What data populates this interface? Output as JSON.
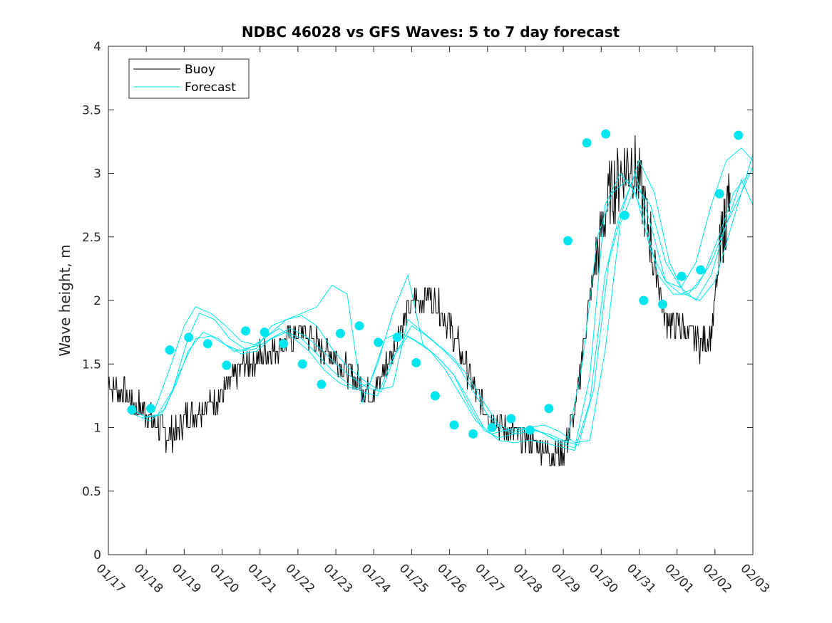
{
  "chart_data": {
    "type": "line",
    "title": "NDBC 46028 vs GFS Waves: 5 to 7 day forecast",
    "xlabel": "",
    "ylabel": "Wave height, m",
    "xlim": [
      0,
      17
    ],
    "ylim": [
      0,
      4
    ],
    "yticks": [
      0,
      0.5,
      1,
      1.5,
      2,
      2.5,
      3,
      3.5,
      4
    ],
    "ytick_labels": [
      "0",
      "0.5",
      "1",
      "1.5",
      "2",
      "2.5",
      "3",
      "3.5",
      "4"
    ],
    "xtick_labels": [
      "01/17",
      "01/18",
      "01/19",
      "01/20",
      "01/21",
      "01/22",
      "01/23",
      "01/24",
      "01/25",
      "01/26",
      "01/27",
      "01/28",
      "01/29",
      "01/30",
      "01/31",
      "02/01",
      "02/02",
      "02/03"
    ],
    "legend": {
      "position": "top-left",
      "entries": [
        {
          "name": "Buoy",
          "color": "#000000"
        },
        {
          "name": "Forecast",
          "color": "#00e5ee"
        }
      ]
    },
    "series": [
      {
        "name": "Buoy",
        "color": "#000000",
        "style": "line",
        "x": [
          0,
          0.3,
          0.6,
          0.9,
          1.2,
          1.5,
          1.8,
          2.1,
          2.4,
          2.7,
          3.0,
          3.3,
          3.6,
          3.9,
          4.2,
          4.5,
          4.8,
          5.1,
          5.4,
          5.7,
          6.0,
          6.3,
          6.6,
          6.9,
          7.2,
          7.5,
          7.8,
          8.1,
          8.4,
          8.7,
          9.0,
          9.3,
          9.6,
          9.9,
          10.2,
          10.5,
          10.8,
          11.1,
          11.4,
          11.7,
          12.0,
          12.3,
          12.6,
          12.9,
          13.2,
          13.5,
          13.8,
          14.1,
          14.4,
          14.7,
          15.0,
          15.3,
          15.6,
          15.9,
          16.2,
          16.4
        ],
        "y": [
          1.35,
          1.3,
          1.2,
          1.15,
          1.05,
          0.95,
          0.95,
          1.1,
          1.15,
          1.2,
          1.25,
          1.4,
          1.5,
          1.55,
          1.6,
          1.65,
          1.7,
          1.75,
          1.7,
          1.6,
          1.55,
          1.45,
          1.35,
          1.25,
          1.4,
          1.6,
          1.85,
          2.0,
          2.05,
          1.95,
          1.8,
          1.6,
          1.35,
          1.15,
          1.05,
          1.0,
          0.95,
          0.9,
          0.85,
          0.8,
          0.8,
          1.1,
          1.8,
          2.4,
          2.8,
          3.0,
          3.1,
          2.8,
          2.3,
          1.85,
          1.8,
          1.75,
          1.65,
          1.75,
          2.5,
          2.85
        ]
      },
      {
        "name": "Forecast",
        "color": "#00e5ee",
        "style": "line",
        "x": [
          0.6,
          1.0,
          1.4,
          1.8,
          2.1,
          2.5,
          2.9,
          3.3,
          3.7,
          4.1,
          4.5,
          4.9,
          5.3,
          5.7,
          6.1,
          6.5,
          6.9,
          7.3,
          7.7,
          8.1,
          8.5,
          8.9,
          9.3,
          9.7,
          10.1,
          10.5,
          10.9,
          11.3,
          11.7,
          12.1,
          12.5,
          12.9,
          13.3,
          13.7,
          14.1,
          14.5,
          14.9,
          15.3,
          15.7,
          16.1,
          16.5,
          16.9
        ],
        "y": [
          1.15,
          1.08,
          1.1,
          1.35,
          1.6,
          1.75,
          1.7,
          1.6,
          1.62,
          1.7,
          1.78,
          1.7,
          1.6,
          1.45,
          1.35,
          1.3,
          1.35,
          1.7,
          1.75,
          1.68,
          1.6,
          1.45,
          1.25,
          1.05,
          0.95,
          0.98,
          1.0,
          0.98,
          0.92,
          0.88,
          1.5,
          2.5,
          2.85,
          2.95,
          2.7,
          2.2,
          2.05,
          2.05,
          2.2,
          2.5,
          2.85,
          3.0
        ]
      },
      {
        "name": "Forecast",
        "color": "#00e5ee",
        "style": "line",
        "x": [
          0.9,
          1.3,
          1.7,
          2.1,
          2.4,
          2.8,
          3.2,
          3.6,
          4.0,
          4.4,
          4.8,
          5.2,
          5.6,
          6.0,
          6.4,
          6.8,
          7.2,
          7.6,
          8.0,
          8.4,
          8.8,
          9.2,
          9.6,
          10.0,
          10.4,
          10.8,
          11.2,
          11.6,
          12.0,
          12.4,
          12.8,
          13.2,
          13.6,
          14.0,
          14.4,
          14.8,
          15.2,
          15.6,
          16.0,
          16.4,
          16.8,
          17.0
        ],
        "y": [
          1.08,
          1.1,
          1.3,
          1.7,
          1.9,
          1.85,
          1.7,
          1.62,
          1.65,
          1.72,
          1.78,
          1.72,
          1.62,
          1.5,
          1.4,
          1.32,
          1.28,
          1.6,
          1.8,
          1.72,
          1.62,
          1.5,
          1.3,
          1.1,
          0.98,
          0.95,
          0.98,
          0.95,
          0.9,
          0.86,
          1.3,
          2.3,
          2.75,
          3.1,
          2.85,
          2.3,
          2.05,
          2.0,
          2.15,
          2.55,
          2.95,
          3.15
        ]
      },
      {
        "name": "Forecast",
        "color": "#00e5ee",
        "style": "line",
        "x": [
          1.2,
          1.6,
          2.0,
          2.3,
          2.7,
          3.1,
          3.5,
          3.9,
          4.3,
          4.7,
          5.1,
          5.5,
          5.9,
          6.3,
          6.7,
          7.1,
          7.5,
          7.9,
          8.3,
          8.7,
          9.1,
          9.5,
          9.9,
          10.3,
          10.7,
          11.1,
          11.5,
          11.9,
          12.3,
          12.7,
          13.1,
          13.5,
          13.9,
          14.3,
          14.7,
          15.1,
          15.5,
          15.9,
          16.3,
          16.7,
          17.0
        ],
        "y": [
          1.12,
          1.45,
          1.8,
          1.95,
          1.9,
          1.8,
          1.68,
          1.65,
          1.75,
          1.85,
          1.88,
          1.8,
          1.62,
          1.48,
          1.38,
          1.3,
          1.32,
          1.85,
          1.75,
          1.65,
          1.55,
          1.4,
          1.2,
          1.02,
          0.97,
          1.0,
          1.02,
          0.97,
          0.88,
          0.9,
          1.6,
          2.6,
          2.9,
          2.75,
          2.3,
          2.1,
          2.0,
          2.2,
          2.6,
          2.95,
          2.75
        ]
      },
      {
        "name": "Forecast",
        "color": "#00e5ee",
        "style": "line",
        "x": [
          0.7,
          1.1,
          1.5,
          1.9,
          2.3,
          2.7,
          3.1,
          3.5,
          3.9,
          4.3,
          4.7,
          5.1,
          5.5,
          5.9,
          6.3,
          6.7,
          7.1,
          7.5,
          7.9,
          8.3,
          8.7,
          9.1,
          9.5,
          9.9,
          10.3,
          10.7,
          11.1,
          11.5,
          11.9,
          12.3,
          12.7,
          13.1,
          13.5,
          13.9,
          14.3,
          14.7,
          15.1,
          15.5,
          15.9,
          16.3,
          16.7,
          17.0
        ],
        "y": [
          1.1,
          1.05,
          1.15,
          1.45,
          1.7,
          1.72,
          1.65,
          1.58,
          1.6,
          1.7,
          1.75,
          1.7,
          1.58,
          1.45,
          1.35,
          1.28,
          1.25,
          1.55,
          1.72,
          1.65,
          1.55,
          1.42,
          1.22,
          1.0,
          0.9,
          0.88,
          0.9,
          0.88,
          0.85,
          0.82,
          1.2,
          2.2,
          2.7,
          3.0,
          2.6,
          2.15,
          2.05,
          2.1,
          2.3,
          2.6,
          2.85,
          3.05
        ]
      },
      {
        "name": "Forecast",
        "color": "#00e5ee",
        "style": "line",
        "x": [
          3.1,
          3.5,
          3.9,
          4.3,
          4.7,
          5.1,
          5.5,
          5.9,
          6.3,
          6.7,
          7.1,
          7.5,
          7.9,
          8.3,
          8.7,
          9.1,
          9.5,
          9.9,
          10.3,
          10.7,
          11.1,
          11.5,
          11.9,
          12.3,
          12.7,
          13.1,
          13.5,
          13.9,
          14.3,
          14.7,
          15.1,
          15.5,
          15.9,
          16.3,
          16.7,
          17.0
        ],
        "y": [
          1.65,
          1.6,
          1.62,
          1.8,
          1.85,
          1.9,
          1.95,
          2.12,
          2.05,
          1.2,
          1.5,
          1.9,
          2.2,
          1.65,
          1.55,
          1.42,
          1.18,
          0.98,
          0.92,
          0.95,
          1.0,
          0.95,
          0.88,
          0.84,
          1.4,
          2.75,
          3.0,
          2.85,
          2.4,
          2.15,
          2.1,
          2.3,
          2.75,
          3.1,
          3.2,
          3.1
        ]
      },
      {
        "name": "Forecast points",
        "color": "#00e5ee",
        "style": "markers",
        "x": [
          0.62,
          1.12,
          1.62,
          2.12,
          2.62,
          3.12,
          3.62,
          4.12,
          4.62,
          5.12,
          5.62,
          6.12,
          6.62,
          7.12,
          7.62,
          8.12,
          8.62,
          9.12,
          9.62,
          10.12,
          10.62,
          11.12,
          11.62,
          12.12,
          12.62,
          13.12,
          13.62,
          14.12,
          14.62,
          15.12,
          15.62,
          16.12,
          16.62
        ],
        "y": [
          1.14,
          1.15,
          1.61,
          1.71,
          1.66,
          1.49,
          1.76,
          1.75,
          1.66,
          1.5,
          1.34,
          1.74,
          1.8,
          1.67,
          1.71,
          1.51,
          1.25,
          1.02,
          0.95,
          1.0,
          1.07,
          0.98,
          1.15,
          2.47,
          3.24,
          3.31,
          2.67,
          2.0,
          1.97,
          2.19,
          2.24,
          2.84,
          3.3
        ]
      }
    ]
  }
}
